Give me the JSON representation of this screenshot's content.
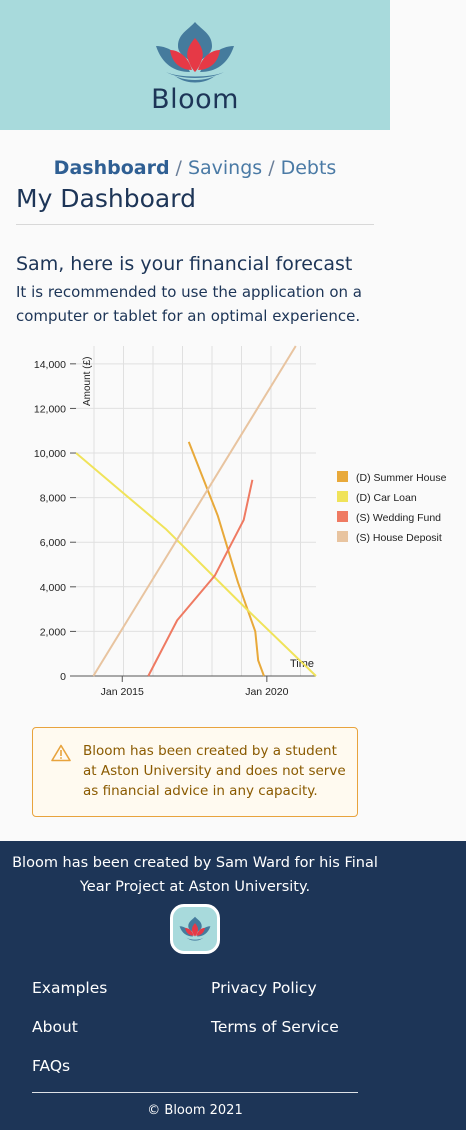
{
  "brand": {
    "name": "Bloom"
  },
  "breadcrumb": {
    "items": [
      "Dashboard",
      "Savings",
      "Debts"
    ],
    "separator": "/"
  },
  "page": {
    "title": "My Dashboard",
    "greeting": "Sam, here is your financial forecast",
    "recommendation": "It is recommended to use the application on a computer or tablet for an optimal experience."
  },
  "chart_data": {
    "type": "line",
    "ylabel": "Amount (£)",
    "xlabel": "Time",
    "x_ticks": [
      "Jan 2015",
      "Jan 2020"
    ],
    "y_ticks": [
      "0",
      "2,000",
      "4,000",
      "6,000",
      "8,000",
      "10,000",
      "12,000",
      "14,000"
    ],
    "ylim": [
      0,
      14800
    ],
    "xlim": [
      2013.4,
      2021.7
    ],
    "grid": true,
    "legend_position": "right",
    "series": [
      {
        "name": "(D) Summer House",
        "color": "#e8a93a",
        "points": [
          [
            2017.3,
            10500
          ],
          [
            2018.3,
            7200
          ],
          [
            2019.0,
            4200
          ],
          [
            2019.6,
            2000
          ],
          [
            2019.7,
            700
          ],
          [
            2019.9,
            0
          ]
        ]
      },
      {
        "name": "(D) Car Loan",
        "color": "#f0e35a",
        "points": [
          [
            2013.4,
            10000
          ],
          [
            2016.5,
            6600
          ],
          [
            2019.3,
            3000
          ],
          [
            2021.7,
            0
          ]
        ]
      },
      {
        "name": "(S) Wedding Fund",
        "color": "#ef7a62",
        "points": [
          [
            2015.9,
            0
          ],
          [
            2016.9,
            2500
          ],
          [
            2018.2,
            4500
          ],
          [
            2019.2,
            7000
          ],
          [
            2019.5,
            8800
          ]
        ]
      },
      {
        "name": "(S) House Deposit",
        "color": "#e8c4a0",
        "points": [
          [
            2014.0,
            0
          ],
          [
            2021.0,
            14800
          ]
        ]
      }
    ]
  },
  "warning": {
    "icon": "warning-triangle-icon",
    "text": "Bloom has been created by a student at Aston University and does not serve as financial advice in any capacity."
  },
  "footer": {
    "about": "Bloom has been created by Sam Ward for his Final Year Project at Aston University.",
    "links": {
      "examples": "Examples",
      "about": "About",
      "faqs": "FAQs",
      "privacy": "Privacy Policy",
      "terms": "Terms of Service"
    },
    "copyright": "© Bloom 2021"
  },
  "colors": {
    "header_bg": "#a8dadc",
    "footer_bg": "#1d3557",
    "primary_text": "#1d3557",
    "link": "#457b9d",
    "warning_border": "#e8a33d"
  }
}
